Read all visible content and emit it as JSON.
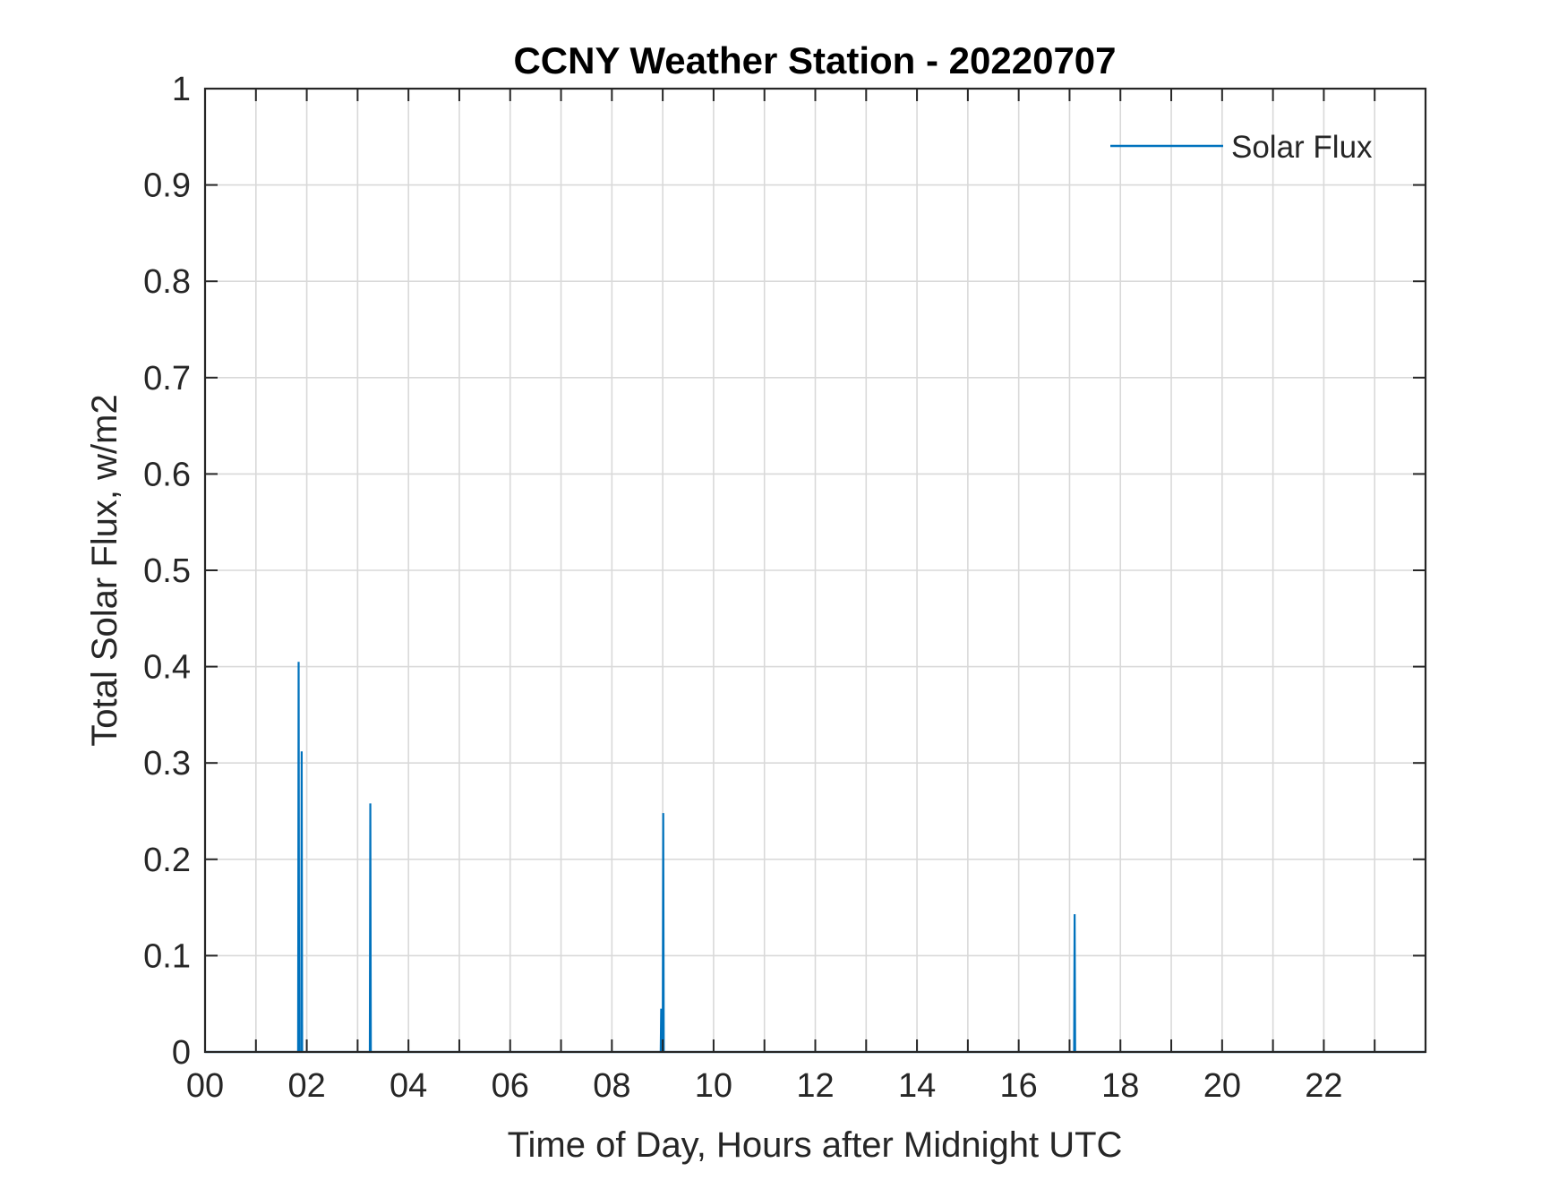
{
  "chart_data": {
    "type": "line",
    "title": "CCNY Weather Station - 20220707",
    "xlabel": "Time of Day, Hours after Midnight UTC",
    "ylabel": "Total Solar Flux, w/m2",
    "xlim": [
      0,
      24
    ],
    "ylim": [
      0,
      1
    ],
    "xticks": [
      0,
      2,
      4,
      6,
      8,
      10,
      12,
      14,
      16,
      18,
      20,
      22
    ],
    "xtick_labels": [
      "00",
      "02",
      "04",
      "06",
      "08",
      "10",
      "12",
      "14",
      "16",
      "18",
      "20",
      "22"
    ],
    "x_grid_step_hours": 1,
    "yticks": [
      0,
      0.1,
      0.2,
      0.3,
      0.4,
      0.5,
      0.6,
      0.7,
      0.8,
      0.9,
      1
    ],
    "ytick_labels": [
      "0",
      "0.1",
      "0.2",
      "0.3",
      "0.4",
      "0.5",
      "0.6",
      "0.7",
      "0.8",
      "0.9",
      "1"
    ],
    "grid": true,
    "legend_position": "top-right",
    "colors": {
      "series": "#0072bd",
      "axes": "#262626",
      "grid": "#d9d9d9"
    },
    "series": [
      {
        "name": "Solar Flux",
        "x": [
          0,
          1.83,
          1.84,
          1.85,
          1.89,
          1.9,
          1.91,
          3.24,
          3.25,
          3.26,
          8.96,
          8.97,
          8.98,
          9.0,
          9.01,
          9.02,
          17.09,
          17.1,
          17.11,
          24
        ],
        "y": [
          0,
          0,
          0.405,
          0,
          0,
          0.312,
          0,
          0,
          0.258,
          0,
          0,
          0.045,
          0,
          0,
          0.248,
          0,
          0,
          0.143,
          0,
          0
        ]
      }
    ]
  }
}
